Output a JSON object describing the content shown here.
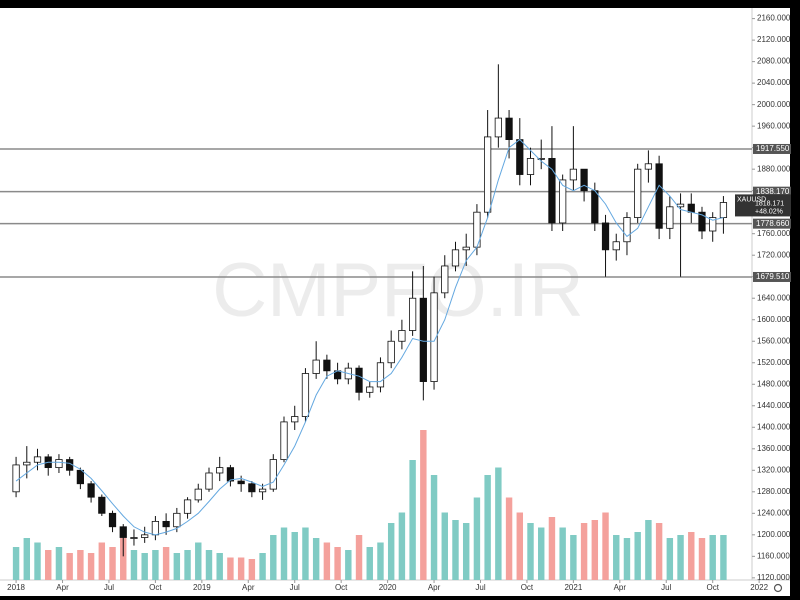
{
  "chart_data": {
    "type": "candlestick",
    "watermark": "CMPFO.IR",
    "symbol": "XAUUSD",
    "last_price": 1818.171,
    "change": "+48.02%",
    "x": [
      0,
      3,
      6,
      9,
      12,
      15,
      18,
      21,
      24,
      27,
      30,
      33,
      36,
      39,
      42,
      45,
      48,
      51,
      54,
      57,
      60,
      63,
      66,
      69,
      72,
      75,
      78,
      81,
      84,
      87,
      90,
      93,
      96,
      99,
      102,
      105,
      108,
      111,
      114,
      117,
      120,
      123,
      126,
      129,
      132,
      135,
      138,
      141,
      144,
      147,
      150,
      153,
      156,
      159,
      162,
      165,
      168,
      171,
      174,
      177,
      180,
      183,
      186,
      189,
      192,
      195,
      198
    ],
    "open": [
      1280,
      1330,
      1335,
      1345,
      1325,
      1340,
      1320,
      1295,
      1270,
      1240,
      1215,
      1195,
      1195,
      1200,
      1225,
      1215,
      1240,
      1265,
      1285,
      1315,
      1325,
      1300,
      1295,
      1280,
      1285,
      1340,
      1410,
      1420,
      1500,
      1525,
      1505,
      1490,
      1510,
      1465,
      1475,
      1520,
      1560,
      1580,
      1640,
      1485,
      1650,
      1700,
      1730,
      1735,
      1800,
      1940,
      1975,
      1935,
      1870,
      1900,
      1900,
      1780,
      1860,
      1880,
      1840,
      1780,
      1730,
      1745,
      1790,
      1880,
      1890,
      1770,
      1810,
      1815,
      1800,
      1765,
      1790
    ],
    "high": [
      1345,
      1365,
      1360,
      1350,
      1350,
      1345,
      1325,
      1300,
      1275,
      1245,
      1220,
      1210,
      1215,
      1235,
      1240,
      1250,
      1270,
      1295,
      1325,
      1345,
      1330,
      1310,
      1300,
      1295,
      1350,
      1420,
      1440,
      1510,
      1560,
      1535,
      1520,
      1520,
      1515,
      1485,
      1530,
      1580,
      1600,
      1690,
      1700,
      1680,
      1720,
      1745,
      1760,
      1815,
      1990,
      2075,
      1990,
      1975,
      1920,
      1935,
      1960,
      1870,
      1960,
      1880,
      1855,
      1795,
      1760,
      1800,
      1890,
      1915,
      1905,
      1830,
      1835,
      1835,
      1810,
      1800,
      1830
    ],
    "low": [
      1270,
      1305,
      1320,
      1310,
      1315,
      1310,
      1285,
      1260,
      1235,
      1205,
      1160,
      1180,
      1185,
      1190,
      1200,
      1205,
      1230,
      1260,
      1280,
      1300,
      1290,
      1280,
      1270,
      1265,
      1280,
      1335,
      1395,
      1410,
      1490,
      1490,
      1480,
      1480,
      1450,
      1455,
      1465,
      1510,
      1545,
      1570,
      1450,
      1470,
      1640,
      1690,
      1700,
      1720,
      1790,
      1920,
      1900,
      1850,
      1850,
      1880,
      1765,
      1765,
      1840,
      1820,
      1765,
      1680,
      1710,
      1720,
      1780,
      1855,
      1750,
      1750,
      1680,
      1780,
      1750,
      1745,
      1760
    ],
    "close": [
      1330,
      1335,
      1345,
      1325,
      1340,
      1320,
      1295,
      1270,
      1240,
      1215,
      1195,
      1195,
      1200,
      1225,
      1215,
      1240,
      1265,
      1285,
      1315,
      1325,
      1300,
      1295,
      1280,
      1285,
      1340,
      1410,
      1420,
      1500,
      1525,
      1505,
      1490,
      1510,
      1465,
      1475,
      1520,
      1560,
      1580,
      1640,
      1485,
      1650,
      1700,
      1730,
      1735,
      1800,
      1940,
      1975,
      1935,
      1870,
      1900,
      1900,
      1780,
      1860,
      1880,
      1840,
      1780,
      1730,
      1745,
      1790,
      1880,
      1890,
      1770,
      1810,
      1815,
      1800,
      1765,
      1790,
      1818
    ],
    "ma": [
      1300,
      1315,
      1330,
      1335,
      1335,
      1333,
      1322,
      1305,
      1282,
      1258,
      1235,
      1215,
      1205,
      1200,
      1205,
      1212,
      1225,
      1240,
      1262,
      1285,
      1302,
      1305,
      1298,
      1290,
      1298,
      1330,
      1365,
      1410,
      1460,
      1495,
      1505,
      1500,
      1495,
      1485,
      1485,
      1500,
      1530,
      1565,
      1560,
      1560,
      1600,
      1660,
      1710,
      1735,
      1790,
      1860,
      1920,
      1935,
      1915,
      1895,
      1880,
      1850,
      1840,
      1850,
      1840,
      1815,
      1780,
      1755,
      1770,
      1810,
      1850,
      1830,
      1805,
      1800,
      1795,
      1785,
      1790
    ],
    "volume": [
      22,
      28,
      25,
      20,
      22,
      18,
      20,
      18,
      25,
      22,
      28,
      20,
      18,
      20,
      22,
      18,
      20,
      25,
      20,
      18,
      15,
      15,
      14,
      18,
      30,
      35,
      32,
      35,
      28,
      25,
      22,
      20,
      30,
      22,
      25,
      38,
      45,
      80,
      100,
      70,
      45,
      40,
      38,
      55,
      70,
      75,
      55,
      45,
      38,
      35,
      42,
      35,
      30,
      38,
      40,
      45,
      30,
      28,
      32,
      40,
      38,
      28,
      30,
      32,
      28,
      30,
      30
    ],
    "vlim": [
      0,
      380
    ],
    "levels": [
      {
        "value": 1917.55,
        "label": "1917.550"
      },
      {
        "value": 1838.17,
        "label": "1838.170"
      },
      {
        "value": 1778.66,
        "label": "1778.660"
      },
      {
        "value": 1679.51,
        "label": "1679.510"
      }
    ],
    "ylim": [
      1116,
      2176
    ],
    "yticks": [
      {
        "value": 1120,
        "label": "1120.000"
      },
      {
        "value": 1160,
        "label": "1160.000"
      },
      {
        "value": 1200,
        "label": "1200.000"
      },
      {
        "value": 1240,
        "label": "1240.000"
      },
      {
        "value": 1280,
        "label": "1280.000"
      },
      {
        "value": 1320,
        "label": "1320.000"
      },
      {
        "value": 1360,
        "label": "1360.000"
      },
      {
        "value": 1400,
        "label": "1400.000"
      },
      {
        "value": 1440,
        "label": "1440.000"
      },
      {
        "value": 1480,
        "label": "1480.000"
      },
      {
        "value": 1520,
        "label": "1520.000"
      },
      {
        "value": 1560,
        "label": "1560.000"
      },
      {
        "value": 1600,
        "label": "1600.000"
      },
      {
        "value": 1640,
        "label": "1640.000"
      },
      {
        "value": 1680,
        "label": "1680.000"
      },
      {
        "value": 1720,
        "label": "1720.000"
      },
      {
        "value": 1760,
        "label": "1760.000"
      },
      {
        "value": 1800,
        "label": "1800.000"
      },
      {
        "value": 1840,
        "label": "1840.000"
      },
      {
        "value": 1880,
        "label": "1880.000"
      },
      {
        "value": 1920,
        "label": "1920.000"
      },
      {
        "value": 1960,
        "label": "1960.000"
      },
      {
        "value": 2000,
        "label": "2000.000"
      },
      {
        "value": 2040,
        "label": "2040.000"
      },
      {
        "value": 2080,
        "label": "2080.000"
      },
      {
        "value": 2120,
        "label": "2120.000"
      },
      {
        "value": 2160,
        "label": "2160.000"
      }
    ],
    "xlim": [
      -4.5,
      206
    ],
    "xticks": [
      {
        "value": 0,
        "label": "2018"
      },
      {
        "value": 13,
        "label": "Apr"
      },
      {
        "value": 26,
        "label": "Jul"
      },
      {
        "value": 39,
        "label": "Oct"
      },
      {
        "value": 52,
        "label": "2019"
      },
      {
        "value": 65,
        "label": "Apr"
      },
      {
        "value": 78,
        "label": "Jul"
      },
      {
        "value": 91,
        "label": "Oct"
      },
      {
        "value": 104,
        "label": "2020"
      },
      {
        "value": 117,
        "label": "Apr"
      },
      {
        "value": 130,
        "label": "Jul"
      },
      {
        "value": 143,
        "label": "Oct"
      },
      {
        "value": 156,
        "label": "2021"
      },
      {
        "value": 169,
        "label": "Apr"
      },
      {
        "value": 182,
        "label": "Jul"
      },
      {
        "value": 195,
        "label": "Oct"
      },
      {
        "value": 208,
        "label": "2022"
      }
    ],
    "up_color": "#ffffff",
    "down_color": "#111111",
    "vol_up_color": "#80cbc4",
    "vol_down_color": "#f4a19c",
    "ma_color": "#64a8e0",
    "level_color": "#8a8a8a"
  }
}
